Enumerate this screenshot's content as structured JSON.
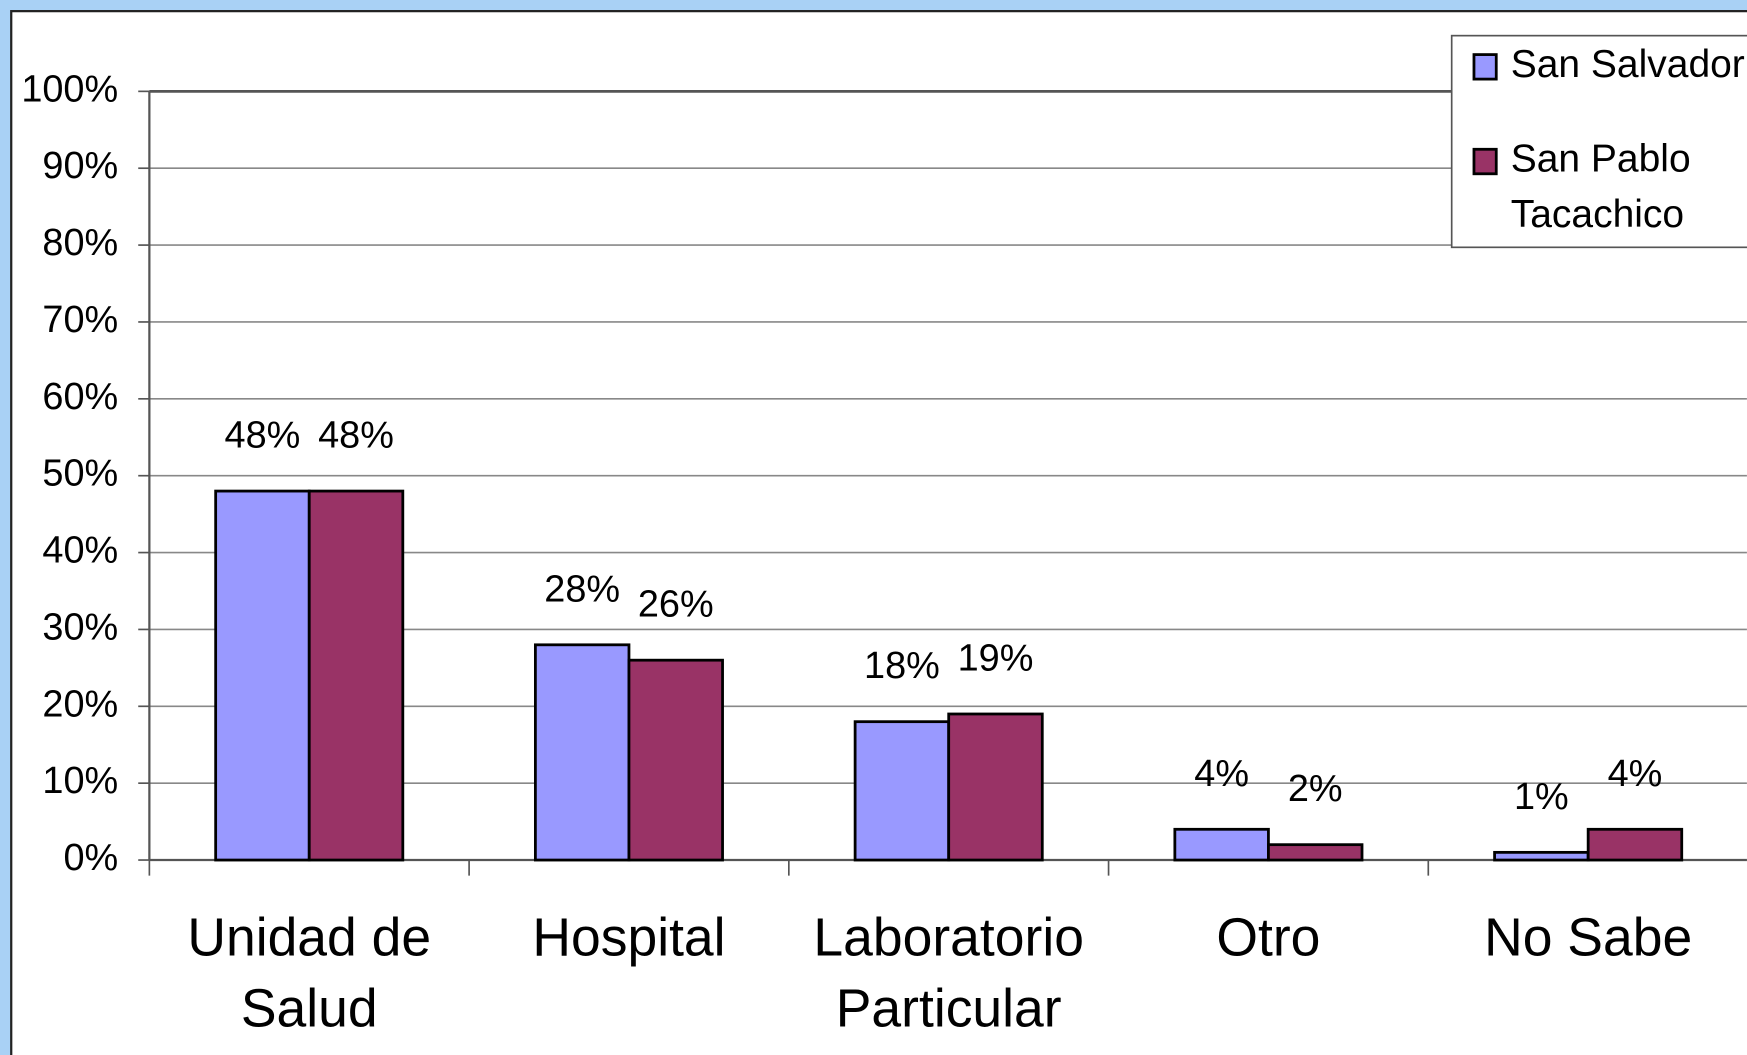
{
  "chart_data": {
    "type": "bar",
    "categories": [
      "Unidad de\nSalud",
      "Hospital",
      "Laboratorio\nParticular",
      "Otro",
      "No Sabe"
    ],
    "series": [
      {
        "name": "San Salvador",
        "color": "#9999ff",
        "values": [
          48,
          28,
          18,
          4,
          1
        ],
        "value_labels": [
          "48%",
          "28%",
          "18%",
          "4%",
          "1%"
        ]
      },
      {
        "name": "San Pablo\nTacachico",
        "color": "#993366",
        "values": [
          48,
          26,
          19,
          2,
          4
        ],
        "value_labels": [
          "48%",
          "26%",
          "19%",
          "2%",
          "4%"
        ]
      }
    ],
    "ylim": [
      0,
      100
    ],
    "yticks": [
      {
        "value": 0,
        "label": "0%"
      },
      {
        "value": 10,
        "label": "10%"
      },
      {
        "value": 20,
        "label": "20%"
      },
      {
        "value": 30,
        "label": "30%"
      },
      {
        "value": 40,
        "label": "40%"
      },
      {
        "value": 50,
        "label": "50%"
      },
      {
        "value": 60,
        "label": "60%"
      },
      {
        "value": 70,
        "label": "70%"
      },
      {
        "value": 80,
        "label": "80%"
      },
      {
        "value": 90,
        "label": "90%"
      },
      {
        "value": 100,
        "label": "100%"
      }
    ],
    "grid": true,
    "legend": "top-right"
  }
}
